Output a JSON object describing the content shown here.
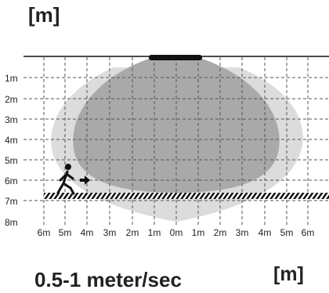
{
  "units": {
    "top": "[m]",
    "bottom": "[m]"
  },
  "speed": "0.5-1 meter/sec",
  "y_ticks": [
    "1m",
    "2m",
    "3m",
    "4m",
    "5m",
    "6m",
    "7m",
    "8m"
  ],
  "x_ticks": [
    "6m",
    "5m",
    "4m",
    "3m",
    "2m",
    "1m",
    "0m",
    "1m",
    "2m",
    "3m",
    "4m",
    "5m",
    "6m"
  ],
  "icons": {
    "walker": "walking-person-icon",
    "direction": "arrow-right-icon"
  },
  "colors": {
    "outer_zone": "#dcdcdc",
    "inner_zone": "#a9a9a9",
    "sensor": "#111111",
    "grid": "#555555",
    "path_stripe": "#111111"
  }
}
